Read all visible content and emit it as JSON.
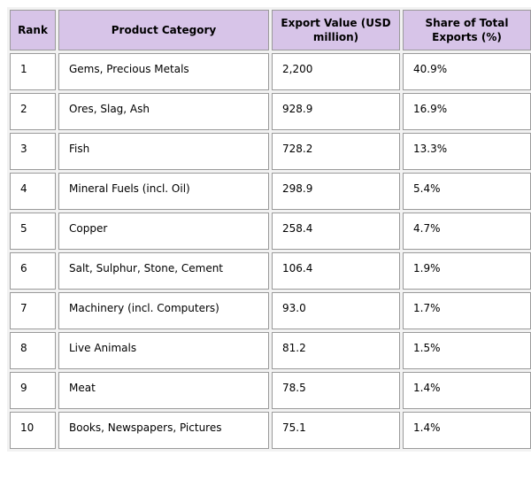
{
  "colors": {
    "header_bg": "#d7c4e8",
    "cell_border": "#9a9a9a",
    "cell_bg": "#ffffff"
  },
  "table": {
    "columns": {
      "rank": "Rank",
      "category": "Product Category",
      "value": "Export Value (USD million)",
      "share": "Share of Total Exports (%)"
    },
    "rows": [
      {
        "rank": "1",
        "category": "Gems, Precious Metals",
        "value": "2,200",
        "share": "40.9%"
      },
      {
        "rank": "2",
        "category": "Ores, Slag, Ash",
        "value": "928.9",
        "share": "16.9%"
      },
      {
        "rank": "3",
        "category": "Fish",
        "value": "728.2",
        "share": "13.3%"
      },
      {
        "rank": "4",
        "category": "Mineral Fuels (incl. Oil)",
        "value": "298.9",
        "share": "5.4%"
      },
      {
        "rank": "5",
        "category": "Copper",
        "value": "258.4",
        "share": "4.7%"
      },
      {
        "rank": "6",
        "category": "Salt, Sulphur, Stone, Cement",
        "value": "106.4",
        "share": "1.9%"
      },
      {
        "rank": "7",
        "category": "Machinery (incl. Computers)",
        "value": "93.0",
        "share": "1.7%"
      },
      {
        "rank": "8",
        "category": "Live Animals",
        "value": "81.2",
        "share": "1.5%"
      },
      {
        "rank": "9",
        "category": "Meat",
        "value": "78.5",
        "share": "1.4%"
      },
      {
        "rank": "10",
        "category": "Books, Newspapers, Pictures",
        "value": "75.1",
        "share": "1.4%"
      }
    ]
  },
  "chart_data": {
    "type": "table",
    "title": "",
    "columns": [
      "Rank",
      "Product Category",
      "Export Value (USD million)",
      "Share of Total Exports (%)"
    ],
    "categories": [
      "Gems, Precious Metals",
      "Ores, Slag, Ash",
      "Fish",
      "Mineral Fuels (incl. Oil)",
      "Copper",
      "Salt, Sulphur, Stone, Cement",
      "Machinery (incl. Computers)",
      "Live Animals",
      "Meat",
      "Books, Newspapers, Pictures"
    ],
    "series": [
      {
        "name": "Export Value (USD million)",
        "values": [
          2200,
          928.9,
          728.2,
          298.9,
          258.4,
          106.4,
          93.0,
          81.2,
          78.5,
          75.1
        ]
      },
      {
        "name": "Share of Total Exports (%)",
        "values": [
          40.9,
          16.9,
          13.3,
          5.4,
          4.7,
          1.9,
          1.7,
          1.5,
          1.4,
          1.4
        ]
      }
    ]
  }
}
